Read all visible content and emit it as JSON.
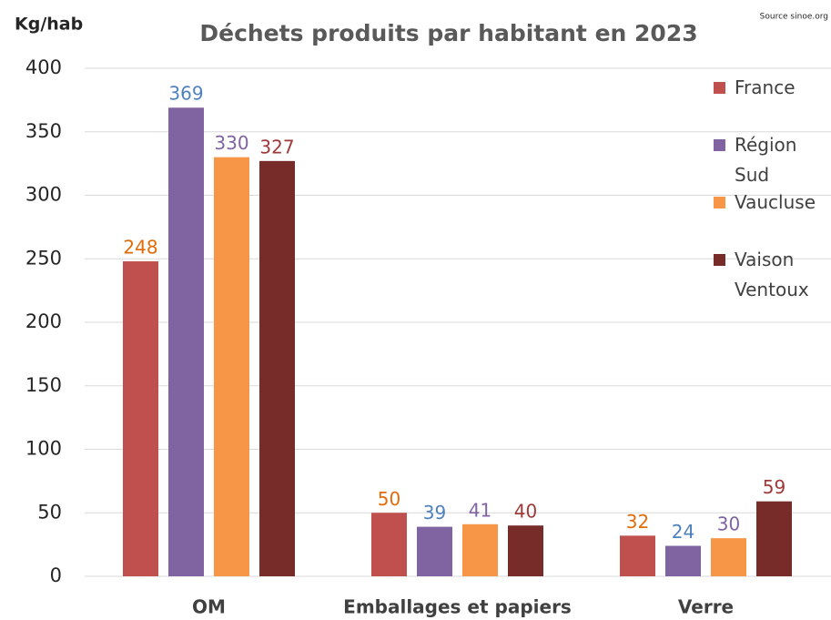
{
  "chart_data": {
    "type": "bar",
    "title": "Déchets produits par habitant en 2023",
    "y_axis_label": "Kg/hab",
    "source": "Source sinoe.org",
    "categories": [
      "OM",
      "Emballages et papiers",
      "Verre"
    ],
    "series": [
      {
        "name": "France",
        "color": "#c0504d",
        "label_color": "#e36c0a",
        "values": [
          248,
          50,
          32
        ]
      },
      {
        "name": "Région Sud",
        "color": "#8064a2",
        "label_color": "#4f81bd",
        "values": [
          369,
          39,
          24
        ]
      },
      {
        "name": "Vaucluse",
        "color": "#f79646",
        "label_color": "#8064a2",
        "values": [
          330,
          41,
          30
        ]
      },
      {
        "name": "Vaison Ventoux",
        "color": "#772c2a",
        "label_color": "#a0393a",
        "values": [
          327,
          40,
          59
        ]
      }
    ],
    "ylim": [
      0,
      400
    ],
    "yticks": [
      0,
      50,
      100,
      150,
      200,
      250,
      300,
      350,
      400
    ],
    "grid": true,
    "legend": "right"
  }
}
